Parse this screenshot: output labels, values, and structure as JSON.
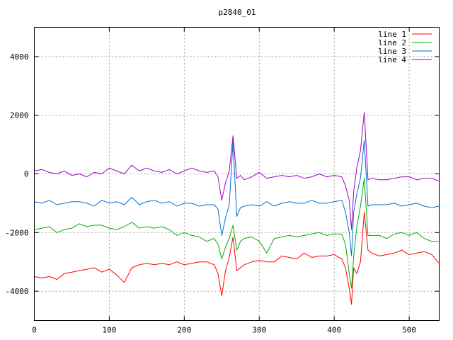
{
  "chart_data": {
    "type": "line",
    "title": "p2840_01",
    "xlabel": "",
    "ylabel": "",
    "xlim": [
      0,
      540
    ],
    "ylim": [
      -5000,
      5000
    ],
    "x_ticks": [
      0,
      100,
      200,
      300,
      400,
      500
    ],
    "y_ticks": [
      -4000,
      -2000,
      0,
      2000,
      4000
    ],
    "x_tick_labels": [
      "0",
      "100",
      "200",
      "300",
      "400",
      "500"
    ],
    "y_tick_labels": [
      "-4000",
      "-2000",
      "0",
      "2000",
      "4000"
    ],
    "grid": true,
    "legend_position": "top-right",
    "x": [
      0,
      10,
      20,
      30,
      40,
      50,
      60,
      70,
      80,
      90,
      100,
      110,
      120,
      130,
      140,
      150,
      160,
      170,
      180,
      190,
      200,
      210,
      220,
      230,
      240,
      245,
      250,
      255,
      260,
      265,
      270,
      275,
      280,
      290,
      300,
      310,
      320,
      330,
      340,
      350,
      360,
      370,
      380,
      390,
      400,
      410,
      415,
      420,
      423,
      426,
      430,
      435,
      440,
      445,
      450,
      460,
      470,
      480,
      490,
      500,
      510,
      520,
      530,
      540
    ],
    "series": [
      {
        "name": "line 1",
        "color": "#ff0000",
        "values": [
          -3500,
          -3550,
          -3500,
          -3600,
          -3400,
          -3350,
          -3300,
          -3250,
          -3200,
          -3350,
          -3250,
          -3450,
          -3700,
          -3200,
          -3100,
          -3050,
          -3100,
          -3050,
          -3100,
          -3000,
          -3100,
          -3050,
          -3000,
          -3000,
          -3100,
          -3400,
          -4150,
          -3300,
          -2850,
          -2150,
          -3300,
          -3200,
          -3100,
          -3000,
          -2950,
          -3000,
          -3000,
          -2800,
          -2850,
          -2900,
          -2700,
          -2850,
          -2800,
          -2800,
          -2750,
          -2900,
          -3200,
          -3900,
          -4450,
          -3200,
          -3400,
          -3000,
          -1300,
          -2600,
          -2700,
          -2800,
          -2750,
          -2700,
          -2600,
          -2750,
          -2700,
          -2650,
          -2750,
          -3050
        ]
      },
      {
        "name": "line 2",
        "color": "#00b000",
        "values": [
          -1900,
          -1850,
          -1800,
          -2000,
          -1900,
          -1850,
          -1700,
          -1800,
          -1750,
          -1750,
          -1850,
          -1900,
          -1800,
          -1650,
          -1850,
          -1800,
          -1850,
          -1800,
          -1900,
          -2100,
          -2000,
          -2100,
          -2150,
          -2300,
          -2200,
          -2400,
          -2900,
          -2500,
          -2200,
          -1750,
          -2600,
          -2300,
          -2200,
          -2150,
          -2300,
          -2700,
          -2200,
          -2150,
          -2100,
          -2150,
          -2100,
          -2050,
          -2000,
          -2100,
          -2050,
          -2050,
          -2400,
          -3400,
          -3900,
          -2800,
          -1800,
          -1100,
          -150,
          -2100,
          -2100,
          -2100,
          -2200,
          -2050,
          -2000,
          -2100,
          -2000,
          -2200,
          -2300,
          -2300
        ]
      },
      {
        "name": "line 3",
        "color": "#0070d0",
        "values": [
          -950,
          -1000,
          -900,
          -1050,
          -1000,
          -950,
          -950,
          -1000,
          -1100,
          -900,
          -1000,
          -950,
          -1050,
          -800,
          -1050,
          -950,
          -900,
          -1000,
          -950,
          -1100,
          -1000,
          -1000,
          -1100,
          -1050,
          -1050,
          -1200,
          -2100,
          -1500,
          -1050,
          1100,
          -1450,
          -1150,
          -1100,
          -1050,
          -1100,
          -950,
          -1100,
          -1000,
          -950,
          -1000,
          -1000,
          -900,
          -1000,
          -1000,
          -950,
          -900,
          -1300,
          -2000,
          -2800,
          -1300,
          -700,
          -150,
          1150,
          -1100,
          -1050,
          -1050,
          -1050,
          -1000,
          -1100,
          -1050,
          -1000,
          -1100,
          -1150,
          -1100
        ]
      },
      {
        "name": "line 4",
        "color": "#a000c8",
        "values": [
          100,
          150,
          50,
          0,
          100,
          -50,
          0,
          -100,
          50,
          0,
          200,
          100,
          0,
          300,
          100,
          200,
          100,
          50,
          150,
          0,
          100,
          200,
          100,
          50,
          100,
          -100,
          -900,
          -300,
          100,
          1300,
          -150,
          -50,
          -200,
          -100,
          50,
          -150,
          -100,
          -50,
          -100,
          -50,
          -150,
          -100,
          0,
          -100,
          -50,
          -100,
          -400,
          -900,
          -1900,
          -600,
          200,
          800,
          2100,
          -200,
          -150,
          -200,
          -200,
          -150,
          -100,
          -100,
          -200,
          -150,
          -150,
          -250
        ]
      }
    ]
  }
}
